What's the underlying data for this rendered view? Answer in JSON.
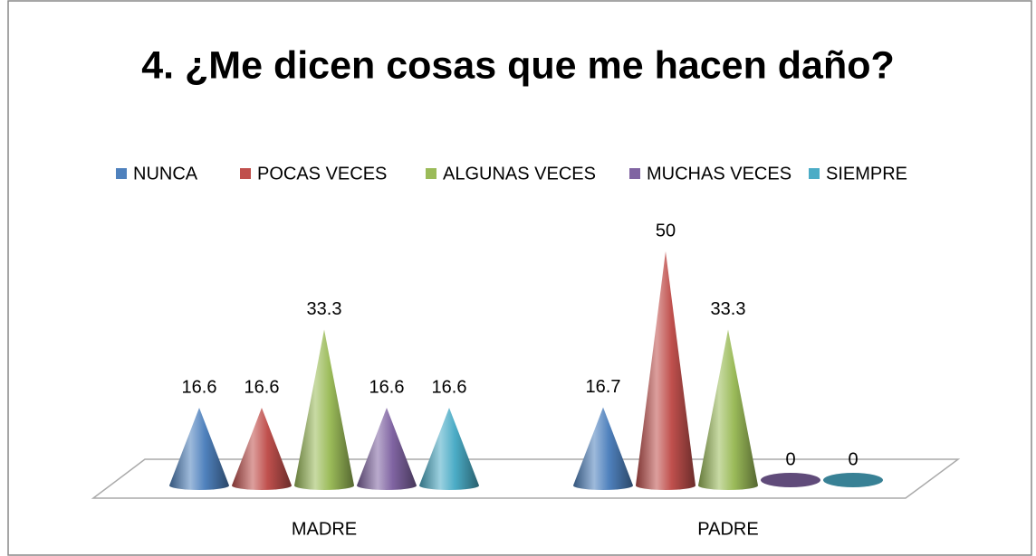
{
  "chart_data": {
    "type": "cone",
    "title": "4. ¿Me dicen cosas que me hacen daño?",
    "categories": [
      "MADRE",
      "PADRE"
    ],
    "series": [
      {
        "name": "NUNCA",
        "color": "#4f81bd",
        "values": [
          16.6,
          16.7
        ]
      },
      {
        "name": "POCAS VECES",
        "color": "#c0504d",
        "values": [
          16.6,
          50
        ]
      },
      {
        "name": "ALGUNAS VECES",
        "color": "#9bbb59",
        "values": [
          33.3,
          33.3
        ]
      },
      {
        "name": "MUCHAS VECES",
        "color": "#8064a2",
        "values": [
          16.6,
          0
        ]
      },
      {
        "name": "SIEMPRE",
        "color": "#4bacc6",
        "values": [
          16.6,
          0
        ]
      }
    ],
    "legend": "top"
  }
}
